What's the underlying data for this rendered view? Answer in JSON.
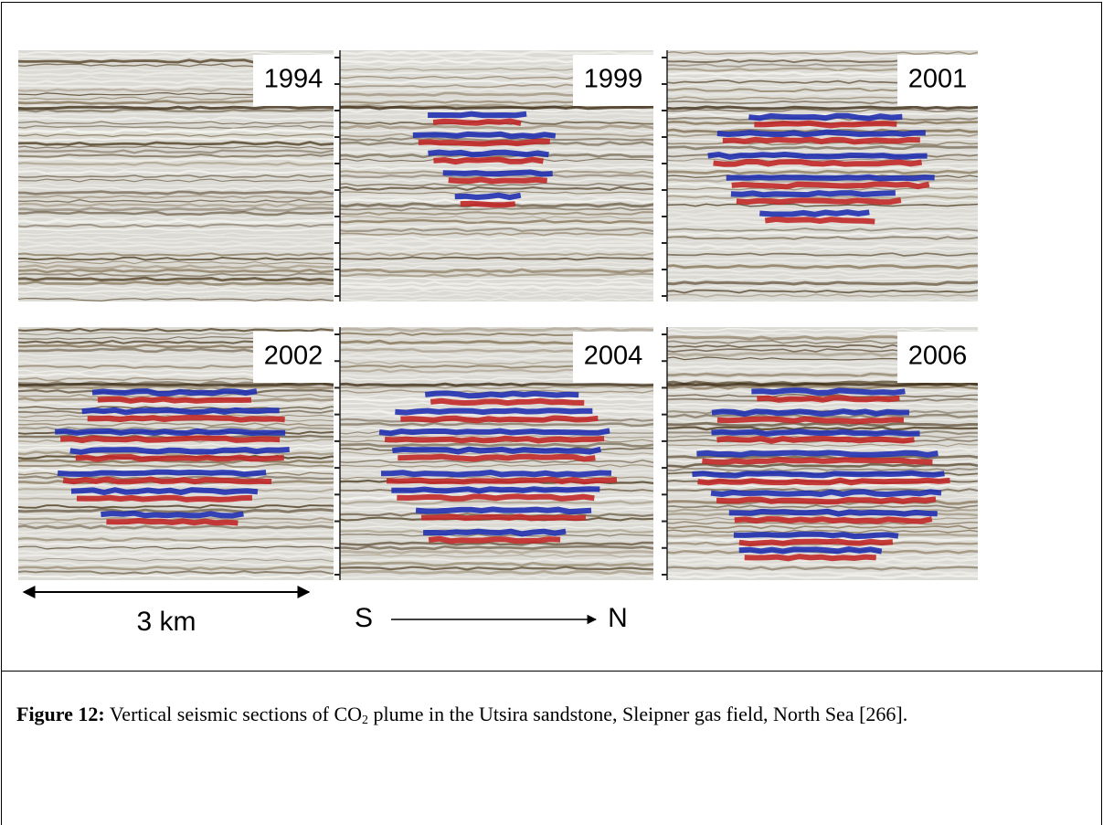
{
  "panels": [
    {
      "year": "1994"
    },
    {
      "year": "1999"
    },
    {
      "year": "2001"
    },
    {
      "year": "2002"
    },
    {
      "year": "2004"
    },
    {
      "year": "2006"
    }
  ],
  "scale_label": "3 km",
  "direction": {
    "start": "S",
    "end": "N"
  },
  "caption": {
    "label": "Figure 12:",
    "text_before": "Vertical seismic sections of CO",
    "subscript": "2",
    "text_after": " plume in the Utsira sandstone, Sleipner gas field, North Sea [266]."
  }
}
